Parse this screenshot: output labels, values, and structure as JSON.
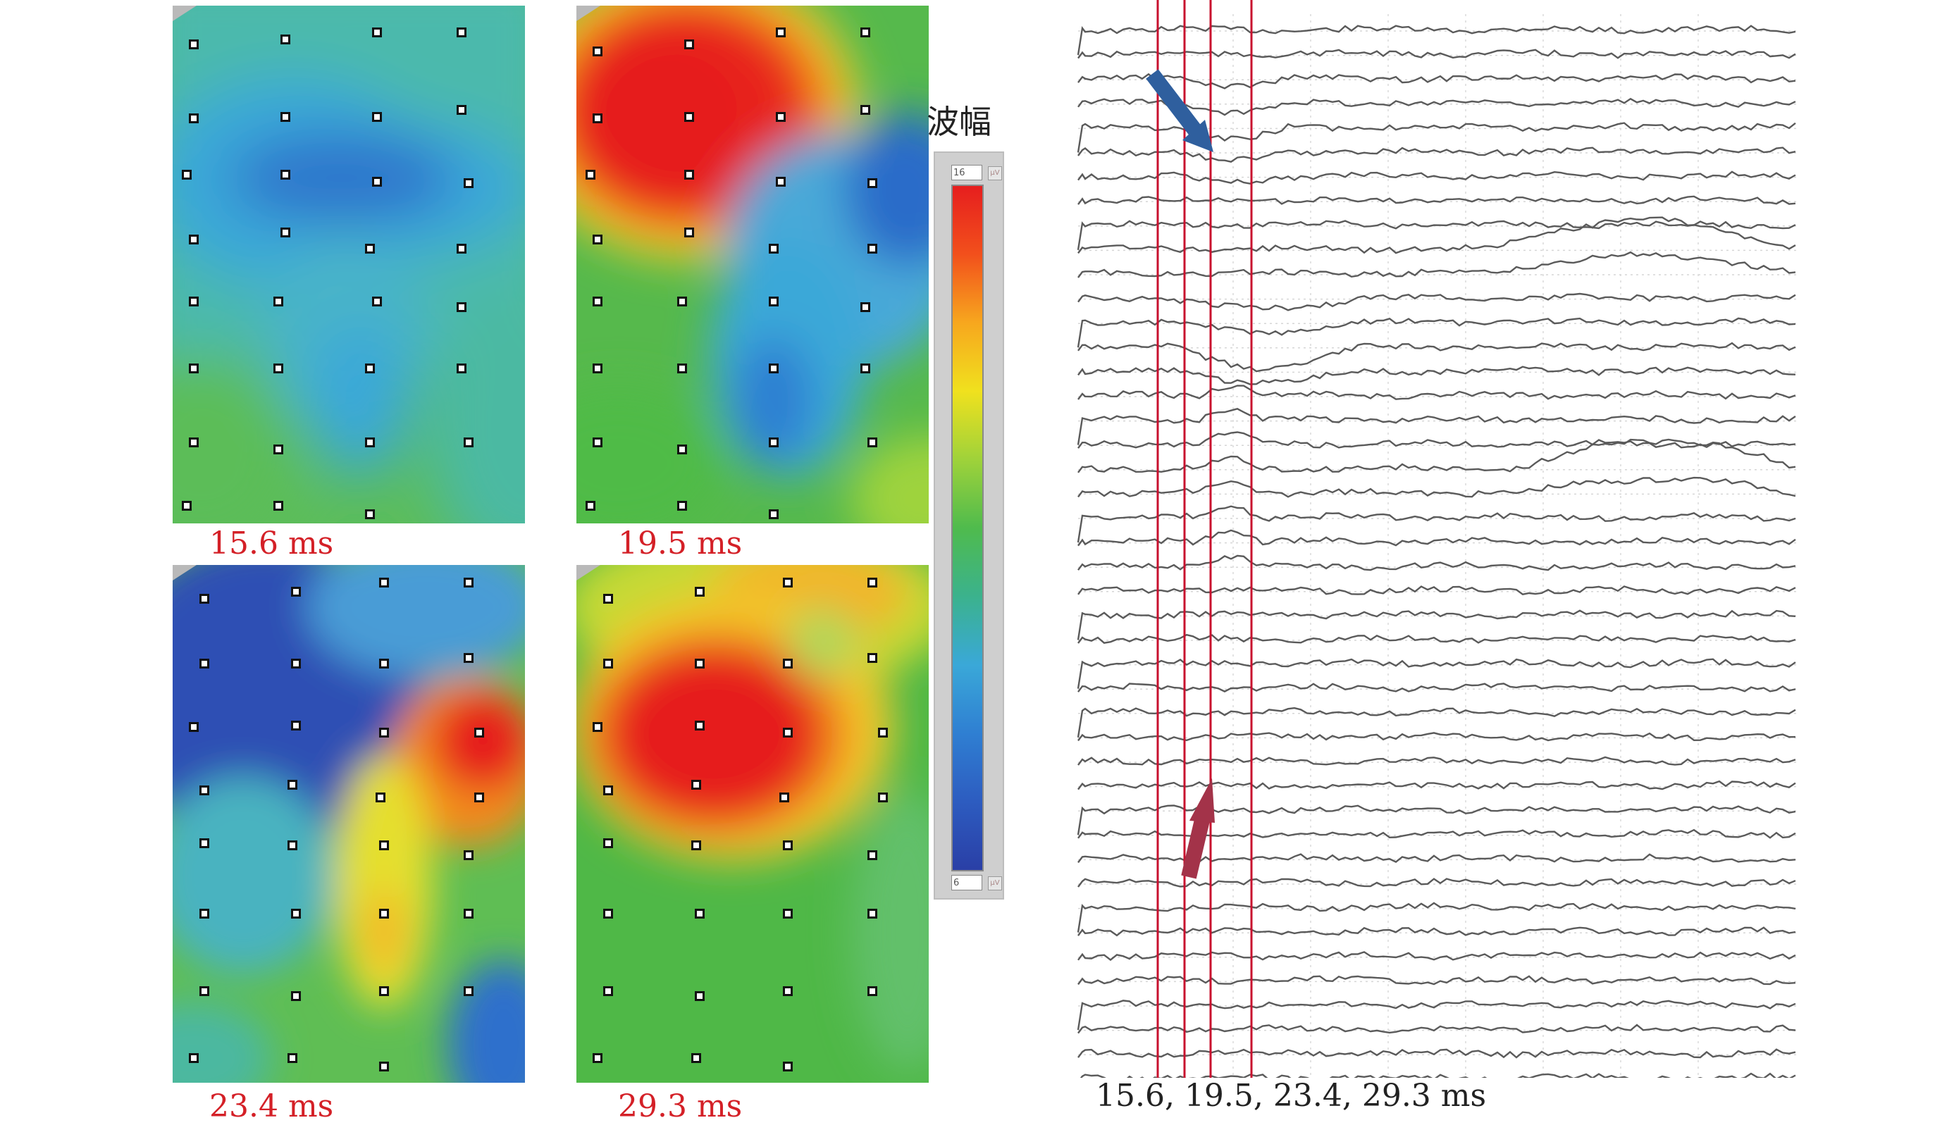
{
  "maps": [
    {
      "time_label": "15.6 ms",
      "palette": "blue-band"
    },
    {
      "time_label": "19.5 ms",
      "palette": "red-blue"
    },
    {
      "time_label": "23.4 ms",
      "palette": "deep-blue-red"
    },
    {
      "time_label": "29.3 ms",
      "palette": "red-green"
    }
  ],
  "color_scale": {
    "title": "波幅",
    "max_label": "16",
    "min_label": "6",
    "unit_label": "μV",
    "colors": [
      "#e61e1e",
      "#f7a71e",
      "#f0e11e",
      "#4fbb4d",
      "#3aa8d8",
      "#2a3fa6"
    ]
  },
  "traces": {
    "caption": "15.6, 19.5, 23.4, 29.3 ms",
    "marker_color": "#c8102e",
    "arrow_down_color": "#2f5f9e",
    "arrow_up_color": "#a33349",
    "trace_color": "#5a5a5a"
  }
}
